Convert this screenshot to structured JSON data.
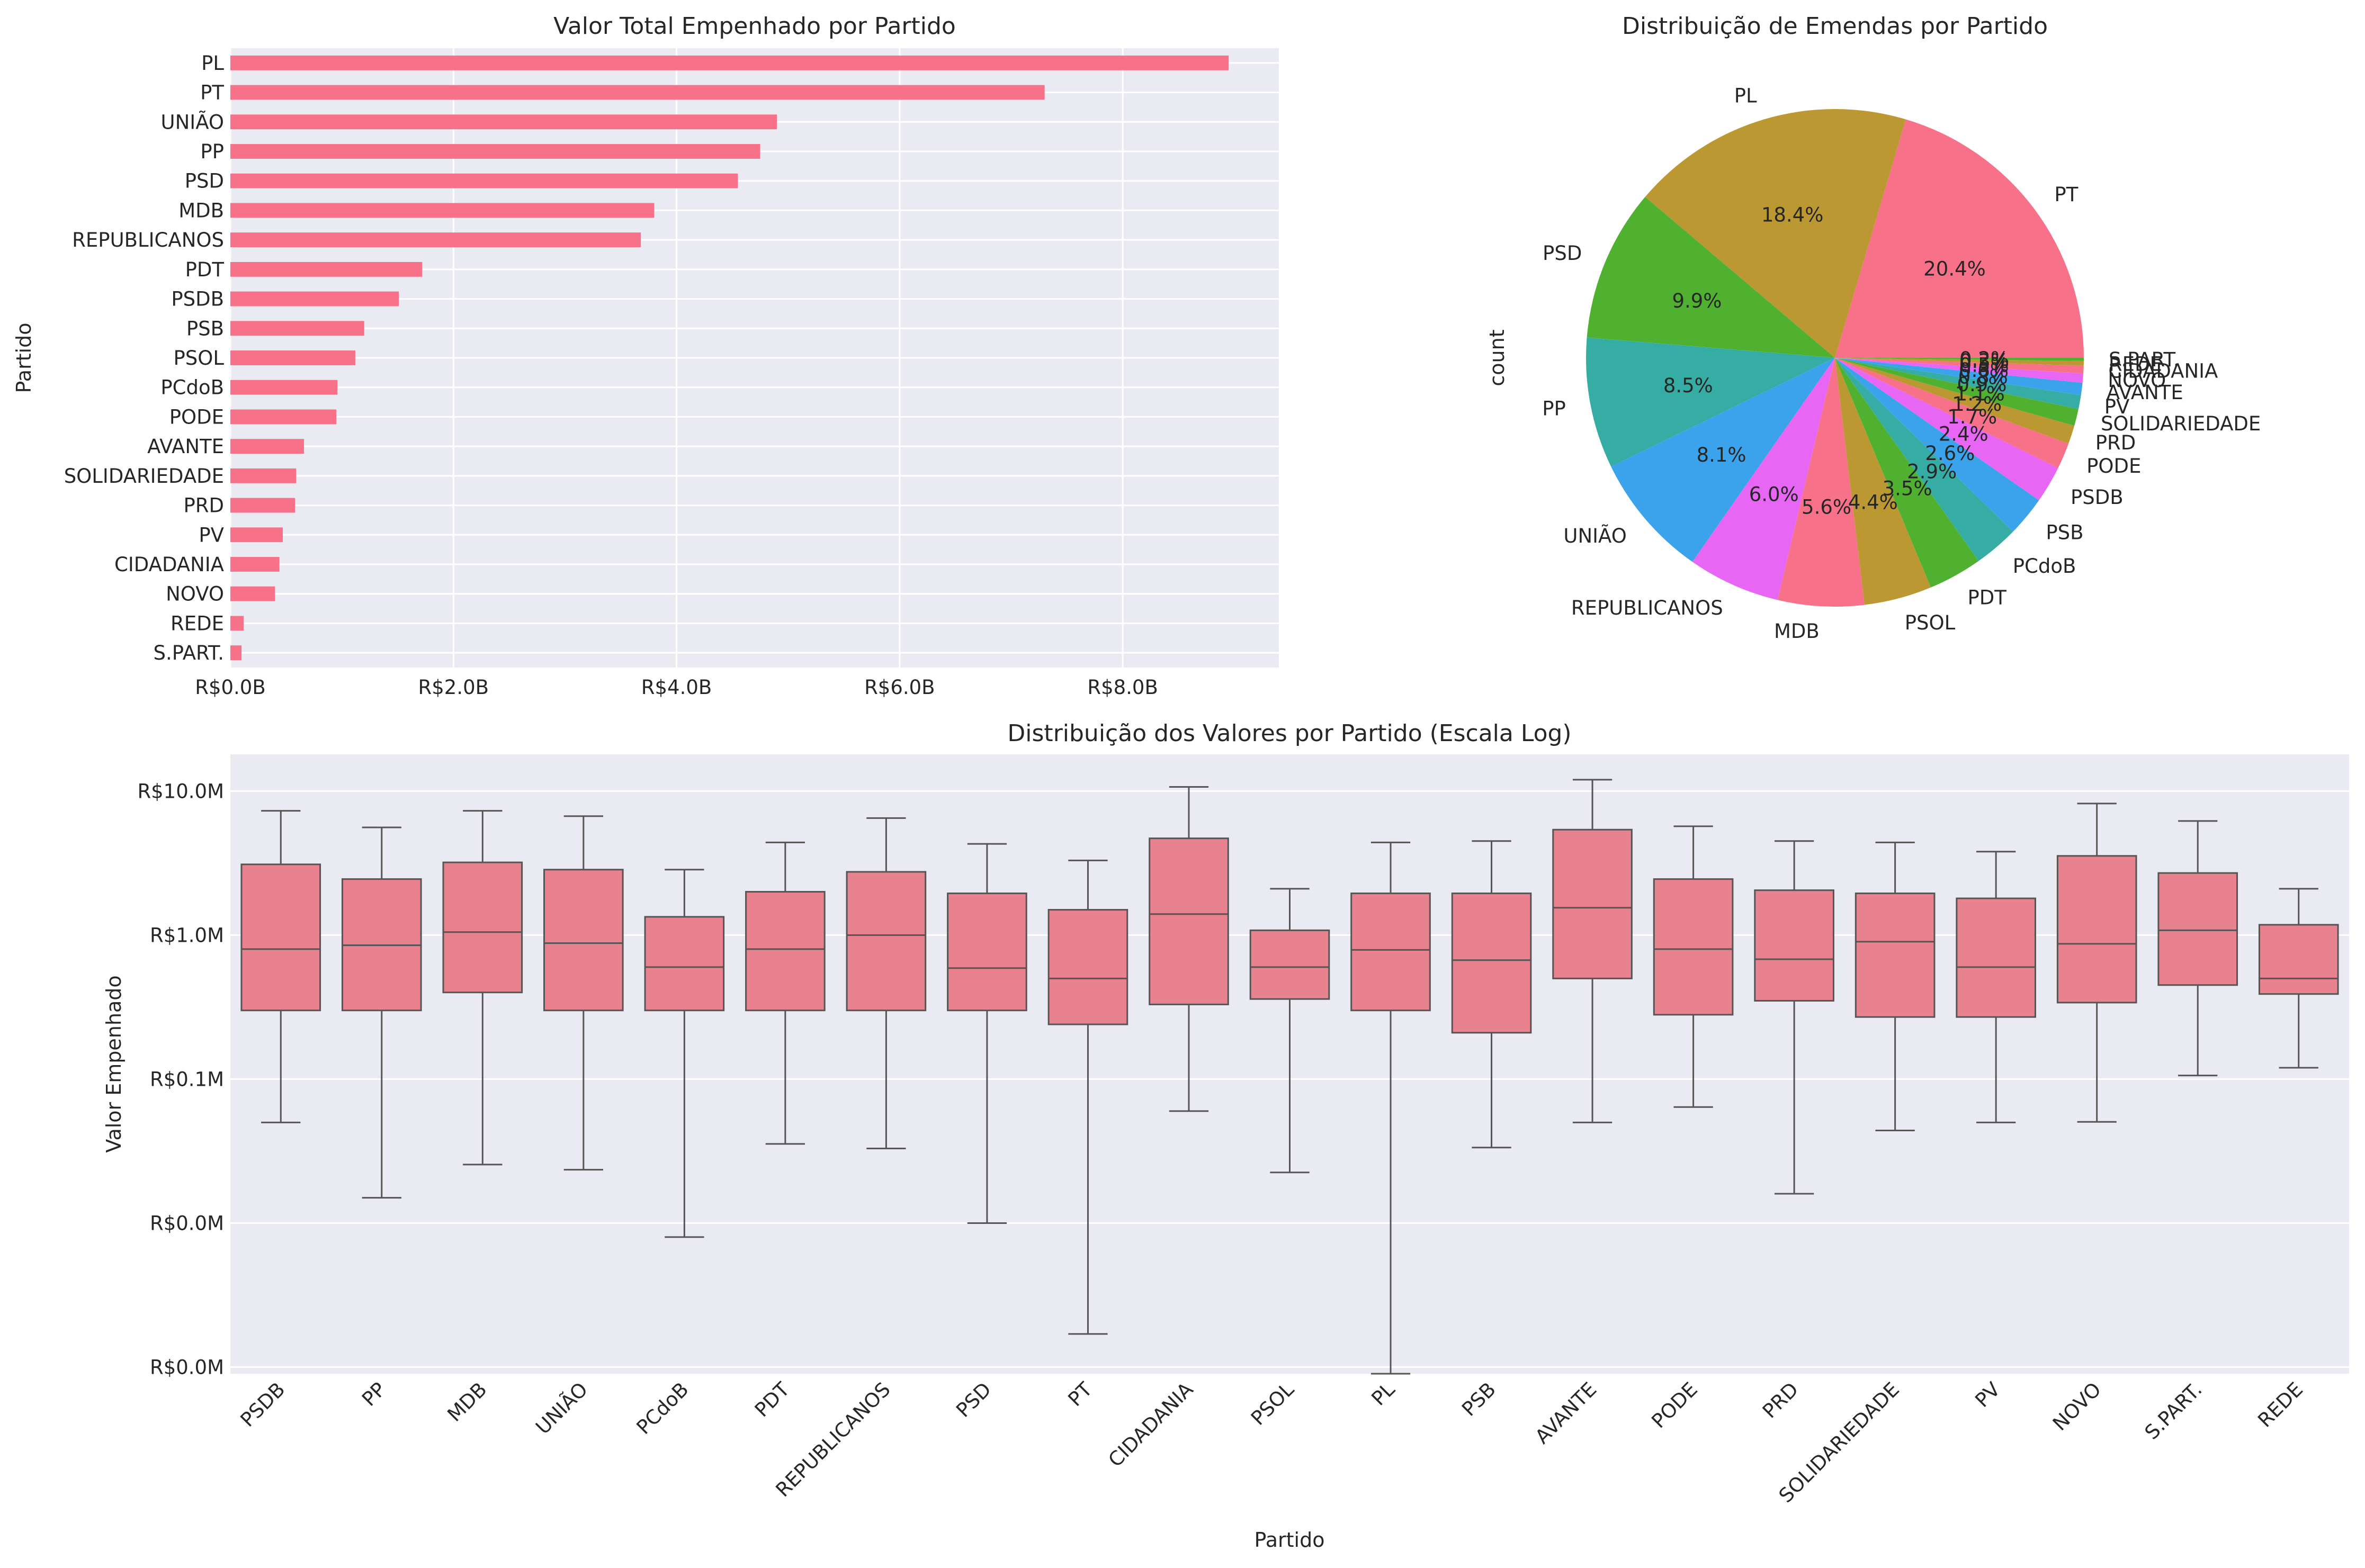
{
  "chart_data": [
    {
      "type": "bar",
      "orientation": "horizontal",
      "title": "Valor Total Empenhado por Partido",
      "xlabel": "",
      "ylabel": "Partido",
      "categories": [
        "PL",
        "PT",
        "UNIÃO",
        "PP",
        "PSD",
        "MDB",
        "REPUBLICANOS",
        "PDT",
        "PSDB",
        "PSB",
        "PSOL",
        "PCdoB",
        "PODE",
        "AVANTE",
        "SOLIDARIEDADE",
        "PRD",
        "PV",
        "CIDADANIA",
        "NOVO",
        "REDE",
        "S.PART."
      ],
      "values": [
        8.95,
        7.3,
        4.9,
        4.75,
        4.55,
        3.8,
        3.68,
        1.72,
        1.51,
        1.2,
        1.12,
        0.96,
        0.95,
        0.66,
        0.59,
        0.58,
        0.47,
        0.44,
        0.4,
        0.12,
        0.1
      ],
      "value_unit": "R$ billions",
      "xlim": [
        0,
        9.4
      ],
      "xticks": [
        0,
        2,
        4,
        6,
        8
      ],
      "xtick_labels": [
        "R$0.0B",
        "R$2.0B",
        "R$4.0B",
        "R$6.0B",
        "R$8.0B"
      ],
      "color": "#f77189",
      "grid": true
    },
    {
      "type": "pie",
      "title": "Distribuição de Emendas por Partido",
      "ylabel": "count",
      "labels": [
        "PT",
        "PL",
        "PSD",
        "PP",
        "UNIÃO",
        "REPUBLICANOS",
        "MDB",
        "PSOL",
        "PDT",
        "PCdoB",
        "PSB",
        "PSDB",
        "PODE",
        "PRD",
        "SOLIDARIEDADE",
        "PV",
        "AVANTE",
        "NOVO",
        "CIDADANIA",
        "REDE",
        "S.PART."
      ],
      "values": [
        20.4,
        18.4,
        9.9,
        8.5,
        8.1,
        6.0,
        5.6,
        4.4,
        3.5,
        2.9,
        2.6,
        2.4,
        1.7,
        1.2,
        1.1,
        0.9,
        0.8,
        0.6,
        0.5,
        0.3,
        0.2
      ],
      "pct_labels": [
        "20.4%",
        "18.4%",
        "9.9%",
        "8.5%",
        "8.1%",
        "6.0%",
        "5.6%",
        "4.4%",
        "3.5%",
        "2.9%",
        "2.6%",
        "2.4%",
        "1.7%",
        "1.2%",
        "1.1%",
        "0.9%",
        "0.8%",
        "0.6%",
        "0.5%",
        "0.3%",
        "0.2%"
      ],
      "colors": [
        "#f77189",
        "#bb9832",
        "#50b131",
        "#36ada4",
        "#3ba3ec",
        "#e866f4",
        "#f77189",
        "#bb9832",
        "#50b131",
        "#36ada4",
        "#3ba3ec",
        "#e866f4",
        "#f77189",
        "#bb9832",
        "#50b131",
        "#36ada4",
        "#3ba3ec",
        "#e866f4",
        "#f77189",
        "#bb9832",
        "#50b131"
      ]
    },
    {
      "type": "box",
      "title": "Distribuição dos Valores por Partido (Escala Log)",
      "xlabel": "Partido",
      "ylabel": "Valor Empenhado",
      "yscale": "log",
      "ytick_labels": [
        "R$10.0M",
        "R$1.0M",
        "R$0.1M",
        "R$0.0M",
        "R$0.0M"
      ],
      "yticks": [
        10000000,
        1000000,
        100000,
        10000,
        1000
      ],
      "ylim": [
        900,
        18000000
      ],
      "color": "#e8828f",
      "categories": [
        "PSDB",
        "PP",
        "MDB",
        "UNIÃO",
        "PCdoB",
        "PDT",
        "REPUBLICANOS",
        "PSD",
        "PT",
        "CIDADANIA",
        "PSOL",
        "PL",
        "PSB",
        "AVANTE",
        "PODE",
        "PRD",
        "SOLIDARIEDADE",
        "PV",
        "NOVO",
        "S.PART.",
        "REDE"
      ],
      "boxes": [
        {
          "whislo": 50000,
          "q1": 300000,
          "med": 800000,
          "q3": 3100000,
          "whishi": 7300000
        },
        {
          "whislo": 15000,
          "q1": 300000,
          "med": 850000,
          "q3": 2450000,
          "whishi": 5600000
        },
        {
          "whislo": 25500,
          "q1": 400000,
          "med": 1050000,
          "q3": 3200000,
          "whishi": 7300000
        },
        {
          "whislo": 23500,
          "q1": 300000,
          "med": 880000,
          "q3": 2850000,
          "whishi": 6700000
        },
        {
          "whislo": 8000,
          "q1": 300000,
          "med": 600000,
          "q3": 1340000,
          "whishi": 2850000
        },
        {
          "whislo": 35500,
          "q1": 300000,
          "med": 800000,
          "q3": 2000000,
          "whishi": 4400000
        },
        {
          "whislo": 33000,
          "q1": 300000,
          "med": 1000000,
          "q3": 2750000,
          "whishi": 6500000
        },
        {
          "whislo": 10000,
          "q1": 300000,
          "med": 590000,
          "q3": 1950000,
          "whishi": 4300000
        },
        {
          "whislo": 1700,
          "q1": 240000,
          "med": 500000,
          "q3": 1500000,
          "whishi": 3300000
        },
        {
          "whislo": 60000,
          "q1": 330000,
          "med": 1400000,
          "q3": 4700000,
          "whishi": 10700000
        },
        {
          "whislo": 22500,
          "q1": 360000,
          "med": 600000,
          "q3": 1080000,
          "whishi": 2100000
        },
        {
          "whislo": 900,
          "q1": 300000,
          "med": 790000,
          "q3": 1950000,
          "whishi": 4400000
        },
        {
          "whislo": 33500,
          "q1": 210000,
          "med": 670000,
          "q3": 1950000,
          "whishi": 4500000
        },
        {
          "whislo": 50000,
          "q1": 500000,
          "med": 1550000,
          "q3": 5400000,
          "whishi": 12000000
        },
        {
          "whislo": 64000,
          "q1": 280000,
          "med": 800000,
          "q3": 2450000,
          "whishi": 5700000
        },
        {
          "whislo": 16000,
          "q1": 350000,
          "med": 680000,
          "q3": 2050000,
          "whishi": 4500000
        },
        {
          "whislo": 44000,
          "q1": 270000,
          "med": 900000,
          "q3": 1950000,
          "whishi": 4400000
        },
        {
          "whislo": 50000,
          "q1": 270000,
          "med": 600000,
          "q3": 1800000,
          "whishi": 3800000
        },
        {
          "whislo": 50500,
          "q1": 340000,
          "med": 870000,
          "q3": 3550000,
          "whishi": 8200000
        },
        {
          "whislo": 106000,
          "q1": 450000,
          "med": 1080000,
          "q3": 2700000,
          "whishi": 6200000
        },
        {
          "whislo": 120000,
          "q1": 390000,
          "med": 500000,
          "q3": 1180000,
          "whishi": 2100000
        }
      ]
    }
  ]
}
